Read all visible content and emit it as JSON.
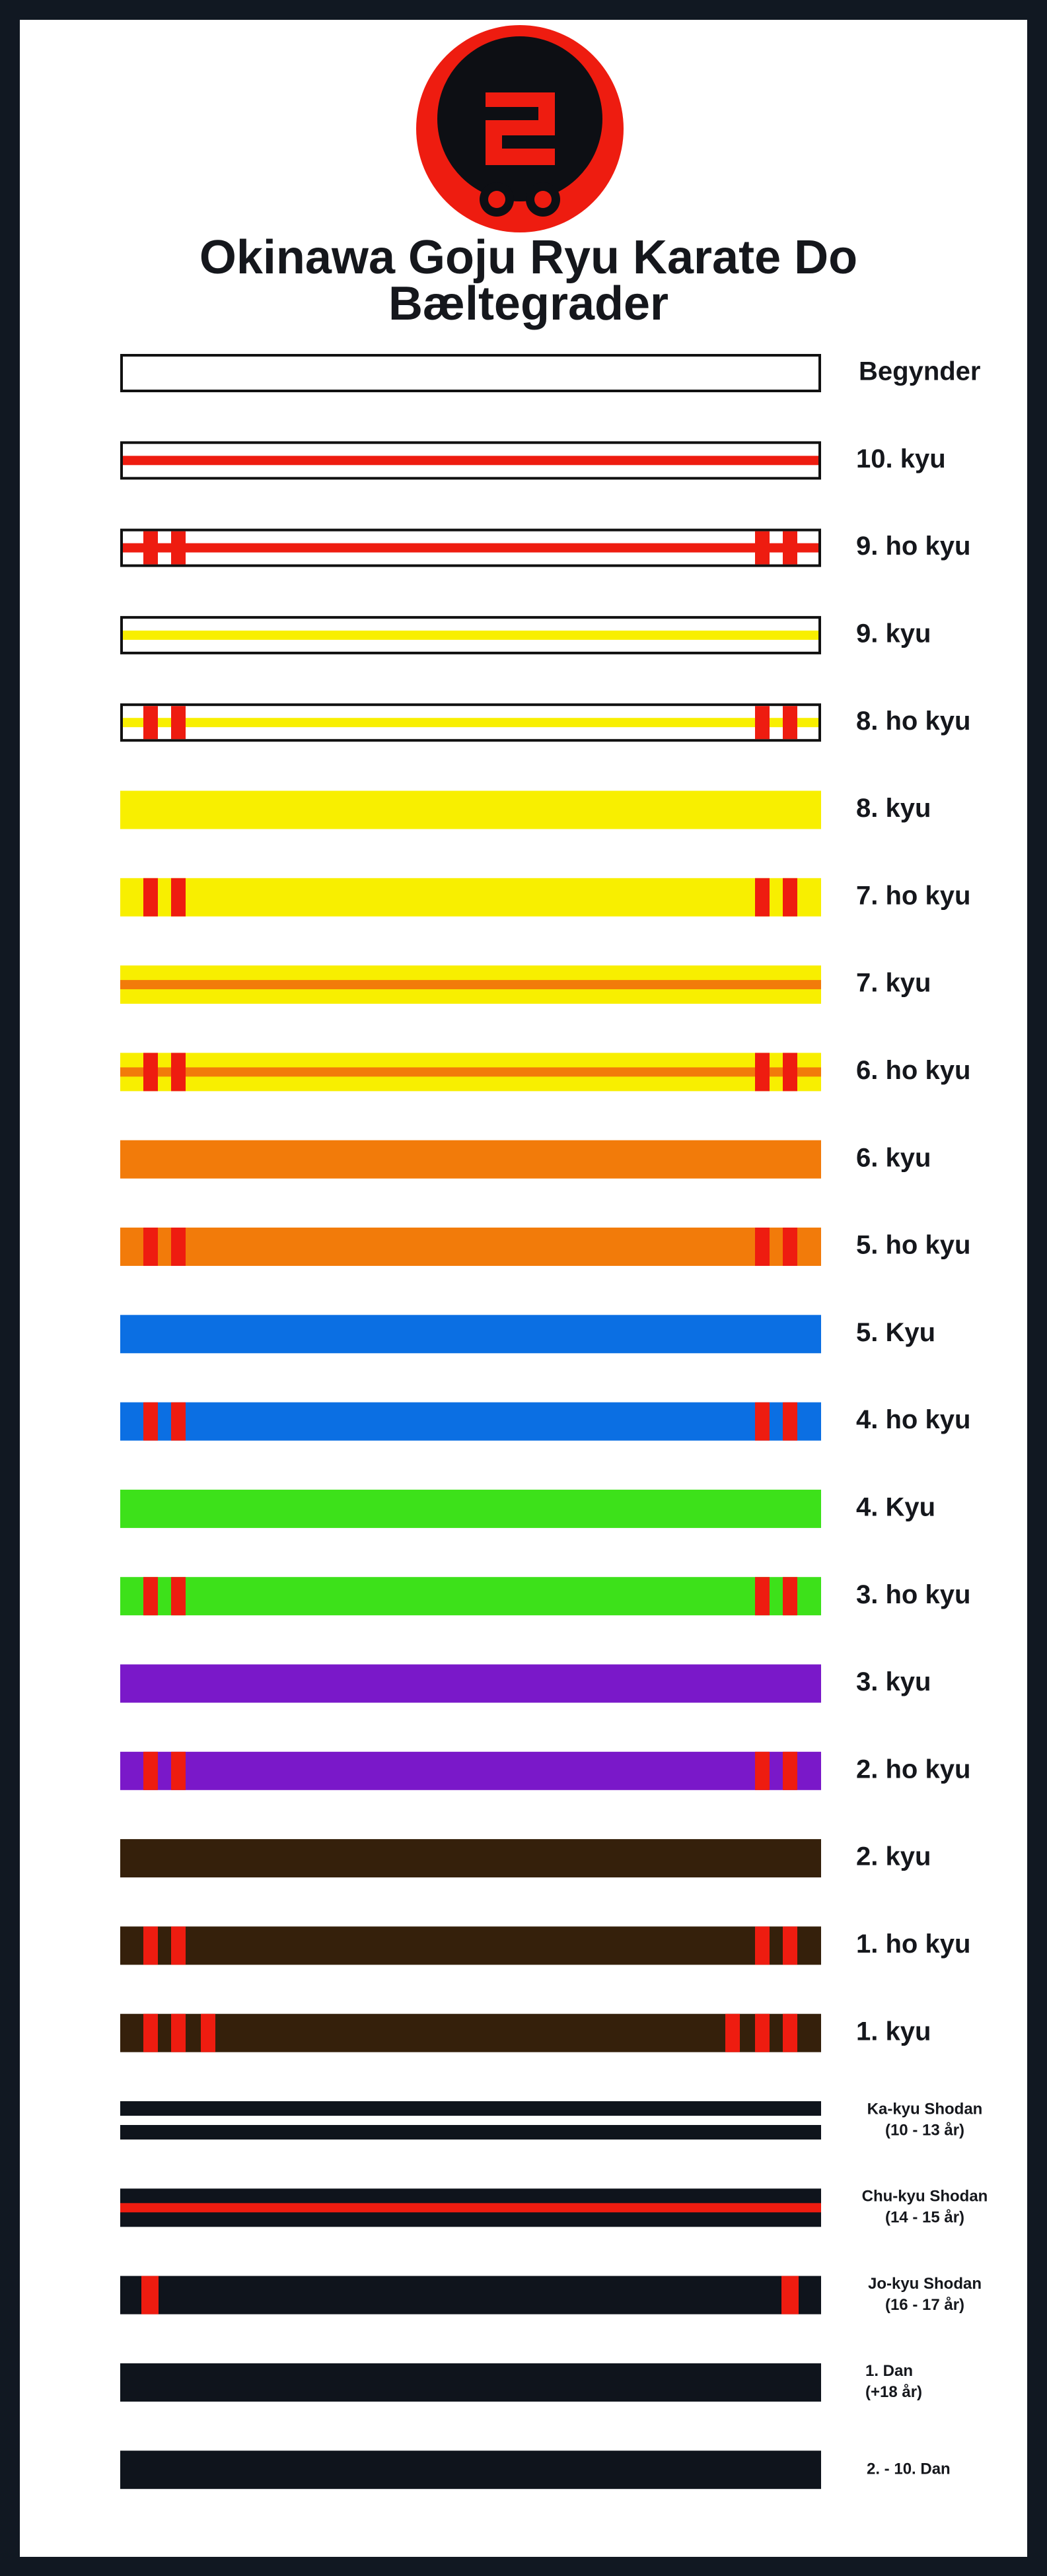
{
  "header": {
    "title_lines": [
      "Okinawa Goju Ryu Karate Do",
      "Bæltegrader"
    ]
  },
  "belts": [
    {
      "label": "Begynder"
    },
    {
      "label": "10. kyu"
    },
    {
      "label": "9. ho kyu"
    },
    {
      "label": "9. kyu"
    },
    {
      "label": "8. ho kyu"
    },
    {
      "label": "8. kyu"
    },
    {
      "label": "7. ho kyu"
    },
    {
      "label": "7. kyu"
    },
    {
      "label": "6. ho kyu"
    },
    {
      "label": "6. kyu"
    },
    {
      "label": "5. ho kyu"
    },
    {
      "label": "5. Kyu"
    },
    {
      "label": "4. ho kyu"
    },
    {
      "label": "4. Kyu"
    },
    {
      "label": "3. ho kyu"
    },
    {
      "label": "3. kyu"
    },
    {
      "label": "2. ho kyu"
    },
    {
      "label": "2. kyu"
    },
    {
      "label": "1. ho kyu"
    },
    {
      "label": "1. kyu"
    },
    {
      "label": "Ka-kyu Shodan",
      "note": "(10 - 13 år)"
    },
    {
      "label": "Chu-kyu Shodan",
      "note": "(14 - 15 år)"
    },
    {
      "label": "Jo-kyu Shodan",
      "note": "(16 - 17 år)"
    },
    {
      "label": "1. Dan",
      "note": "(+18 år)"
    },
    {
      "label": "2. - 10. Dan"
    }
  ]
}
